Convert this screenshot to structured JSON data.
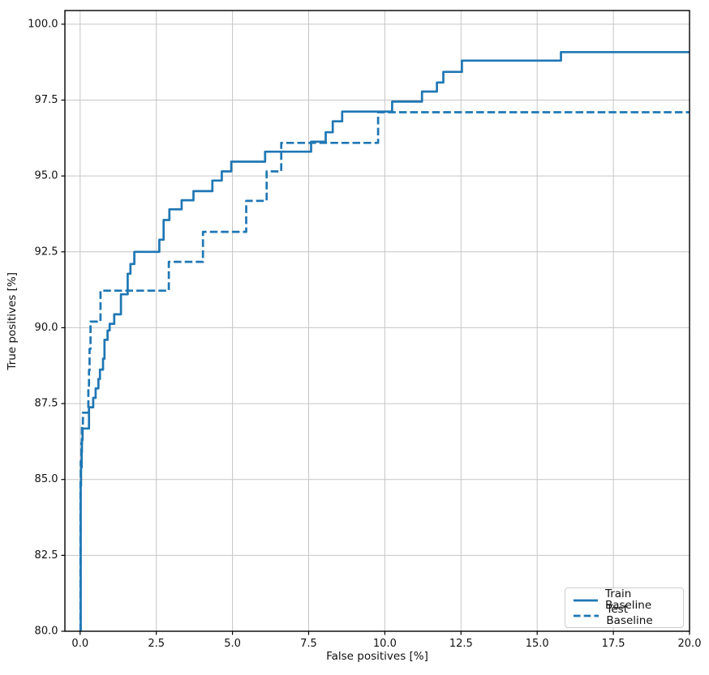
{
  "figure": {
    "background": "#ffffff",
    "accent_color": "#1f77b4",
    "grid_color": "#c6c6c6",
    "spine_color": "#000000"
  },
  "legend": {
    "items": [
      {
        "label": "Train Baseline",
        "style": "solid"
      },
      {
        "label": "Test Baseline",
        "style": "dashed"
      }
    ]
  },
  "chart_data": {
    "type": "line",
    "subtype": "step",
    "title": "",
    "xlabel": "False positives [%]",
    "ylabel": "True positives [%]",
    "xlim": [
      -0.5,
      20
    ],
    "ylim": [
      80,
      100.45
    ],
    "x_ticks": [
      0.0,
      2.5,
      5.0,
      7.5,
      10.0,
      12.5,
      15.0,
      17.5,
      20.0
    ],
    "y_ticks": [
      80.0,
      82.5,
      85.0,
      87.5,
      90.0,
      92.5,
      95.0,
      97.5,
      100.0
    ],
    "grid": true,
    "legend_position": "lower right",
    "line_color": "#1f77b4",
    "series": [
      {
        "name": "Train Baseline",
        "style": "solid",
        "points": [
          [
            0,
            80
          ],
          [
            0.02,
            84.8
          ],
          [
            0.03,
            85.4
          ],
          [
            0.05,
            85.9
          ],
          [
            0.06,
            86.3
          ],
          [
            0.08,
            86.68
          ],
          [
            0.29,
            87.38
          ],
          [
            0.43,
            87.69
          ],
          [
            0.51,
            88.0
          ],
          [
            0.6,
            88.31
          ],
          [
            0.65,
            88.62
          ],
          [
            0.75,
            88.98
          ],
          [
            0.8,
            89.6
          ],
          [
            0.9,
            89.91
          ],
          [
            0.97,
            90.13
          ],
          [
            1.12,
            90.44
          ],
          [
            1.34,
            91.1
          ],
          [
            1.56,
            91.78
          ],
          [
            1.65,
            92.1
          ],
          [
            1.78,
            92.5
          ],
          [
            2.6,
            92.9
          ],
          [
            2.74,
            93.55
          ],
          [
            2.93,
            93.9
          ],
          [
            3.33,
            94.2
          ],
          [
            3.72,
            94.5
          ],
          [
            4.34,
            94.85
          ],
          [
            4.65,
            95.15
          ],
          [
            4.96,
            95.47
          ],
          [
            6.07,
            95.8
          ],
          [
            7.58,
            96.13
          ],
          [
            8.06,
            96.44
          ],
          [
            8.29,
            96.8
          ],
          [
            8.6,
            97.12
          ],
          [
            10.24,
            97.45
          ],
          [
            11.22,
            97.78
          ],
          [
            11.71,
            98.08
          ],
          [
            11.92,
            98.43
          ],
          [
            12.53,
            98.8
          ],
          [
            15.78,
            99.08
          ],
          [
            20,
            99.08
          ]
        ]
      },
      {
        "name": "Test Baseline",
        "style": "dashed",
        "points": [
          [
            0,
            80
          ],
          [
            0.01,
            84.9
          ],
          [
            0.02,
            85.6
          ],
          [
            0.04,
            86.2
          ],
          [
            0.06,
            86.8
          ],
          [
            0.09,
            87.2
          ],
          [
            0.27,
            88.0
          ],
          [
            0.29,
            88.6
          ],
          [
            0.31,
            89.3
          ],
          [
            0.34,
            90.2
          ],
          [
            0.67,
            91.22
          ],
          [
            2.91,
            92.17
          ],
          [
            4.03,
            93.16
          ],
          [
            5.45,
            94.18
          ],
          [
            6.12,
            95.15
          ],
          [
            6.6,
            96.09
          ],
          [
            9.78,
            97.1
          ],
          [
            20,
            97.1
          ]
        ]
      }
    ]
  }
}
